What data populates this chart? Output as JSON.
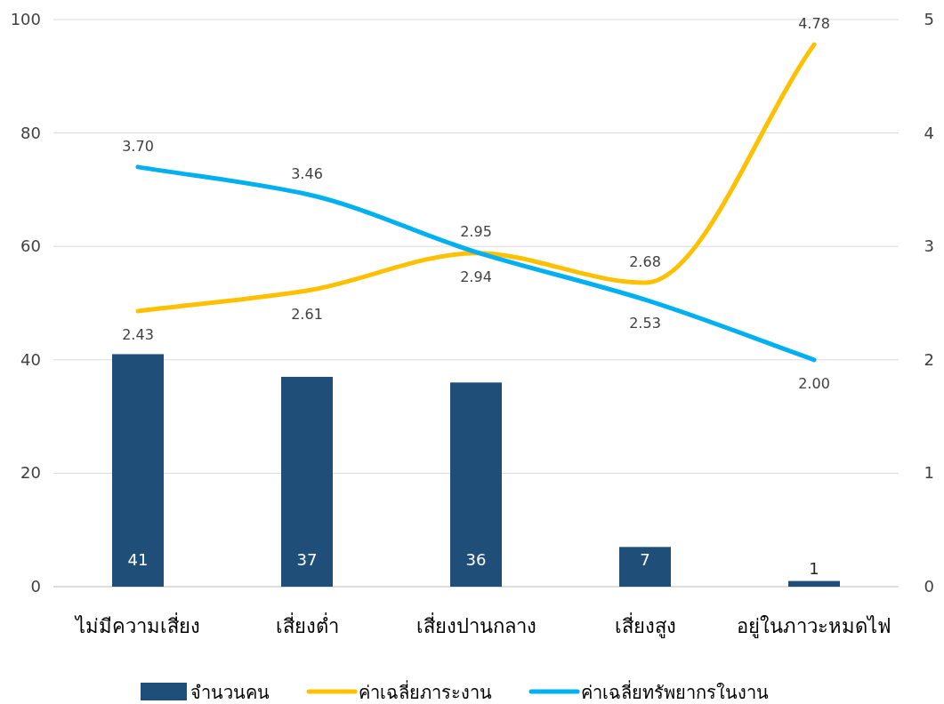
{
  "chart_data": {
    "type": "bar",
    "categories": [
      "ไม่มีความเสี่ยง",
      "เสี่ยงต่ำ",
      "เสี่ยงปานกลาง",
      "เสี่ยงสูง",
      "อยู่ในภาวะหมดไฟ"
    ],
    "series": [
      {
        "name": "จำนวนคน",
        "color": "#1f4e79",
        "values": [
          41,
          37,
          36,
          7,
          1
        ],
        "value_labels": [
          "41",
          "37",
          "36",
          "7",
          "1"
        ]
      },
      {
        "name": "ค่าเฉลี่ยภาระงาน",
        "type": "line",
        "axis": "y2",
        "color": "#ffc000",
        "values": [
          2.43,
          2.61,
          2.94,
          2.68,
          4.78
        ],
        "value_labels": [
          "2.43",
          "2.61",
          "2.94",
          "2.68",
          "4.78"
        ]
      },
      {
        "name": "ค่าเฉลี่ยทรัพยากรในงาน",
        "type": "line",
        "axis": "y2",
        "color": "#00b0f0",
        "values": [
          3.7,
          3.46,
          2.95,
          2.53,
          2.0
        ],
        "value_labels": [
          "3.70",
          "3.46",
          "2.95",
          "2.53",
          "2.00"
        ]
      }
    ],
    "ylim": [
      0,
      100
    ],
    "yticks": [
      0,
      20,
      40,
      60,
      80,
      100
    ],
    "y2lim": [
      0,
      5
    ],
    "y2ticks": [
      0,
      1,
      2,
      3,
      4,
      5
    ],
    "grid": "y",
    "legend": "bottom",
    "marker": "none",
    "line_style": "solid"
  }
}
